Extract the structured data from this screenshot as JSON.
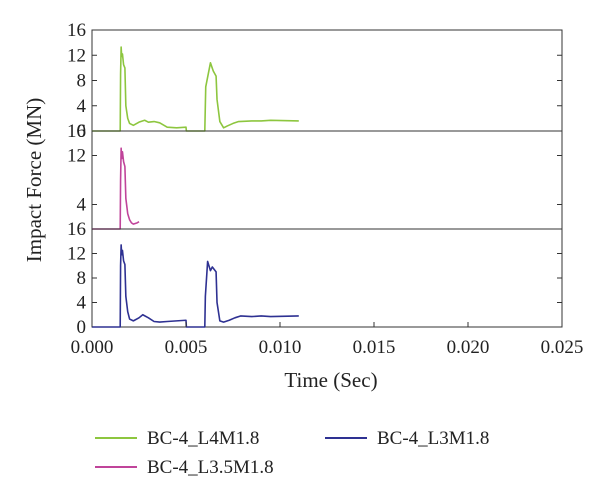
{
  "chart_data": {
    "type": "line",
    "xlabel": "Time (Sec)",
    "ylabel": "Impact Force (MN)",
    "xlim": [
      0,
      0.025
    ],
    "xticks": [
      "0.000",
      "0.005",
      "0.010",
      "0.015",
      "0.020",
      "0.025"
    ],
    "panels": [
      {
        "ylim": [
          0,
          16
        ],
        "yticks": [
          "16",
          "12",
          "8",
          "4",
          "0"
        ],
        "series": [
          {
            "name": "BC-4_L4M1.8",
            "color": "#8dc63f",
            "points": [
              [
                0,
                0
              ],
              [
                0.0015,
                0
              ],
              [
                0.00152,
                9
              ],
              [
                0.00155,
                13.3
              ],
              [
                0.00158,
                11.8
              ],
              [
                0.00162,
                12.2
              ],
              [
                0.00168,
                10.5
              ],
              [
                0.00175,
                10
              ],
              [
                0.0018,
                4
              ],
              [
                0.0019,
                2
              ],
              [
                0.002,
                1.2
              ],
              [
                0.0022,
                0.9
              ],
              [
                0.0025,
                1.4
              ],
              [
                0.0028,
                1.7
              ],
              [
                0.003,
                1.4
              ],
              [
                0.0033,
                1.5
              ],
              [
                0.0036,
                1.3
              ],
              [
                0.004,
                0.6
              ],
              [
                0.0045,
                0.5
              ],
              [
                0.005,
                0.6
              ],
              [
                0.00502,
                0
              ],
              [
                0.006,
                0
              ],
              [
                0.00605,
                7
              ],
              [
                0.0063,
                10.8
              ],
              [
                0.00645,
                9.5
              ],
              [
                0.0066,
                8.7
              ],
              [
                0.00665,
                5
              ],
              [
                0.0068,
                1.5
              ],
              [
                0.007,
                0.5
              ],
              [
                0.0072,
                0.8
              ],
              [
                0.0075,
                1.2
              ],
              [
                0.0078,
                1.5
              ],
              [
                0.0085,
                1.6
              ],
              [
                0.009,
                1.6
              ],
              [
                0.0095,
                1.7
              ],
              [
                0.011,
                1.6
              ]
            ]
          }
        ]
      },
      {
        "ylim": [
          0,
          16
        ],
        "yticks": [
          "16",
          "12",
          "4"
        ],
        "series": [
          {
            "name": "BC-4_L3.5M1.8",
            "color": "#c0449a",
            "points": [
              [
                0,
                0
              ],
              [
                0.0015,
                0
              ],
              [
                0.00152,
                8
              ],
              [
                0.00155,
                13.2
              ],
              [
                0.00158,
                11.5
              ],
              [
                0.00162,
                12.6
              ],
              [
                0.00168,
                11
              ],
              [
                0.00175,
                10.2
              ],
              [
                0.0018,
                5
              ],
              [
                0.0019,
                2.5
              ],
              [
                0.002,
                1.5
              ],
              [
                0.0021,
                1
              ],
              [
                0.0022,
                0.8
              ],
              [
                0.0024,
                1
              ],
              [
                0.0025,
                1.2
              ]
            ]
          }
        ]
      },
      {
        "ylim": [
          0,
          16
        ],
        "yticks": [
          "16",
          "12",
          "8",
          "4",
          "0"
        ],
        "series": [
          {
            "name": "BC-4_L3M1.8",
            "color": "#2e3192",
            "points": [
              [
                0,
                0
              ],
              [
                0.0015,
                0
              ],
              [
                0.00152,
                10
              ],
              [
                0.00155,
                13.4
              ],
              [
                0.00158,
                11.8
              ],
              [
                0.00162,
                12.5
              ],
              [
                0.00168,
                10.8
              ],
              [
                0.00175,
                10.2
              ],
              [
                0.0018,
                5
              ],
              [
                0.0019,
                2.5
              ],
              [
                0.002,
                1.3
              ],
              [
                0.0022,
                1
              ],
              [
                0.0025,
                1.5
              ],
              [
                0.0027,
                2
              ],
              [
                0.003,
                1.5
              ],
              [
                0.0033,
                0.9
              ],
              [
                0.0036,
                0.8
              ],
              [
                0.004,
                0.9
              ],
              [
                0.0045,
                1
              ],
              [
                0.005,
                1.1
              ],
              [
                0.00502,
                0
              ],
              [
                0.006,
                0
              ],
              [
                0.00603,
                5
              ],
              [
                0.00615,
                10.7
              ],
              [
                0.0063,
                9.2
              ],
              [
                0.0064,
                9.8
              ],
              [
                0.0066,
                9
              ],
              [
                0.00665,
                4
              ],
              [
                0.0068,
                1
              ],
              [
                0.007,
                0.8
              ],
              [
                0.0073,
                1.1
              ],
              [
                0.0076,
                1.5
              ],
              [
                0.0079,
                1.8
              ],
              [
                0.0085,
                1.7
              ],
              [
                0.009,
                1.8
              ],
              [
                0.0095,
                1.7
              ],
              [
                0.011,
                1.8
              ]
            ]
          }
        ]
      }
    ],
    "legend": {
      "placement": "bottom",
      "entries": [
        {
          "label": "BC-4_L4M1.8",
          "color": "#8dc63f"
        },
        {
          "label": "BC-4_L3M1.8",
          "color": "#2e3192"
        },
        {
          "label": "BC-4_L3.5M1.8",
          "color": "#c0449a"
        }
      ]
    }
  }
}
